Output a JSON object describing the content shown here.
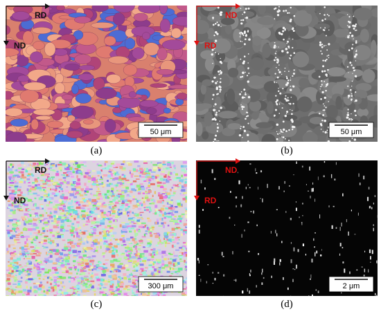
{
  "panels": [
    {
      "caption": "(a)",
      "h_axis": "RD",
      "v_axis": "ND",
      "scale_bar": "50 μm"
    },
    {
      "caption": "(b)",
      "h_axis": "ND",
      "v_axis": "RD",
      "scale_bar": "50 μm"
    },
    {
      "caption": "(c)",
      "h_axis": "RD",
      "v_axis": "ND",
      "scale_bar": "300 μm"
    },
    {
      "caption": "(d)",
      "h_axis": "ND",
      "v_axis": "RD",
      "scale_bar": "2 μm"
    }
  ]
}
